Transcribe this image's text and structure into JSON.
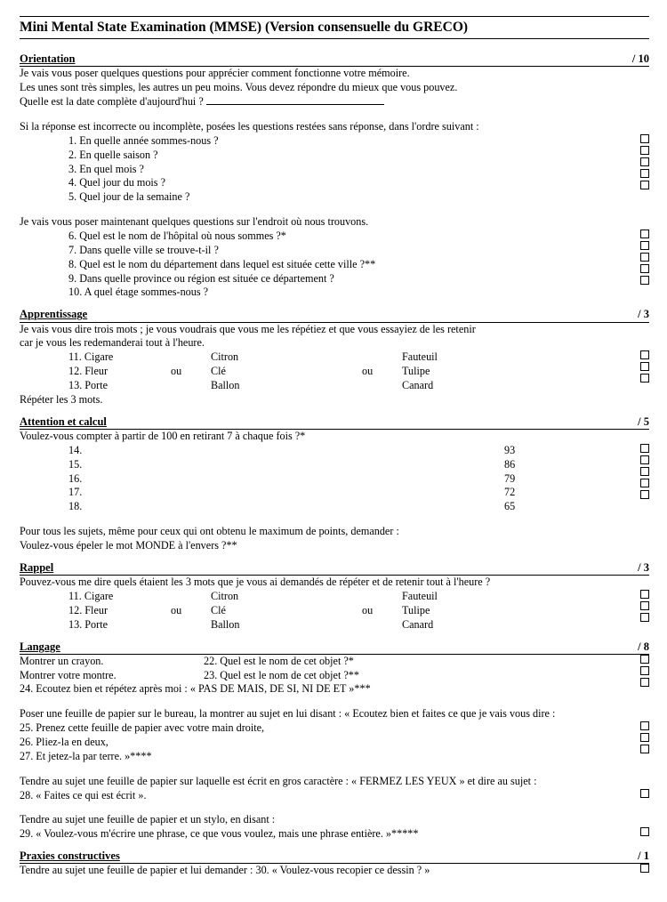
{
  "title": "Mini Mental State Examination (MMSE) (Version consensuelle du GRECO)",
  "scoreSlash": "/ ",
  "orientation": {
    "title": "Orientation",
    "max": "10",
    "intro1": "Je vais vous poser quelques questions pour apprécier comment fonctionne votre mémoire.",
    "intro2": "Les unes sont très simples, les autres un peu moins. Vous devez répondre du mieux que vous pouvez.",
    "dateQ": "Quelle est la date complète d'aujourd'hui ? ",
    "followup": "Si la réponse est incorrecte ou incomplète, posées les questions restées sans réponse, dans l'ordre suivant :",
    "q1": "1. En quelle année sommes-nous ?",
    "q2": "2. En quelle saison ?",
    "q3": "3. En quel mois ?",
    "q4": "4. Quel jour du mois ?",
    "q5": "5. Quel jour de la semaine ?",
    "place_intro": "Je vais vous poser maintenant quelques questions sur l'endroit où nous trouvons.",
    "q6": "6. Quel est le nom de l'hôpital où nous sommes ?*",
    "q7": "7. Dans quelle ville se trouve-t-il ?",
    "q8": "8. Quel est le nom du département dans lequel est située cette ville ?**",
    "q9": "9. Dans quelle province ou région est située ce département ?",
    "q10": "10. A quel étage sommes-nous ?"
  },
  "apprentissage": {
    "title": "Apprentissage",
    "max": "3",
    "intro1": "Je vais vous dire trois mots ; je vous voudrais que vous me les répétiez et que vous essayiez de les retenir",
    "intro2": "car je vous les redemanderai tout à l'heure.",
    "row1": {
      "n": "11. Cigare",
      "w2": "Citron",
      "w3": "Fauteuil"
    },
    "row2": {
      "n": "12. Fleur",
      "ou": "ou",
      "w2": "Clé",
      "w3": "Tulipe"
    },
    "row3": {
      "n": "13. Porte",
      "w2": "Ballon",
      "w3": "Canard"
    },
    "repeat": "Répéter les 3 mots."
  },
  "attention": {
    "title": "Attention et calcul",
    "max": "5",
    "intro": "Voulez-vous compter à partir de 100 en retirant 7 à chaque fois ?*",
    "r14": {
      "n": "14.",
      "v": "93"
    },
    "r15": {
      "n": "15.",
      "v": "86"
    },
    "r16": {
      "n": "16.",
      "v": "79"
    },
    "r17": {
      "n": "17.",
      "v": "72"
    },
    "r18": {
      "n": "18.",
      "v": "65"
    },
    "post1": "Pour tous les sujets, même pour ceux qui ont obtenu le maximum de points, demander :",
    "post2": "Voulez-vous épeler le mot MONDE à l'envers ?**"
  },
  "rappel": {
    "title": "Rappel",
    "max": "3",
    "intro": "Pouvez-vous me dire quels étaient les 3 mots que je vous ai demandés de répéter et de retenir tout à l'heure ?",
    "row1": {
      "n": "11. Cigare",
      "w2": "Citron",
      "w3": "Fauteuil"
    },
    "row2": {
      "n": "12. Fleur",
      "ou": "ou",
      "w2": "Clé",
      "w3": "Tulipe"
    },
    "row3": {
      "n": "13. Porte",
      "w2": "Ballon",
      "w3": "Canard"
    }
  },
  "langage": {
    "title": "Langage",
    "max": "8",
    "l1a": "Montrer un crayon.",
    "l1b": "22. Quel est le nom de cet objet ?*",
    "l2a": "Montrer votre montre.",
    "l2b": "23. Quel est le nom de cet objet ?**",
    "l3": "24. Ecoutez bien et répétez après moi : « PAS DE MAIS, DE SI, NI DE ET »***",
    "p1": "Poser une feuille de papier sur le bureau, la montrer au sujet en lui disant : « Ecoutez bien et faites ce que je vais vous dire :",
    "q25": "25. Prenez cette feuille de papier avec votre main droite,",
    "q26": "26. Pliez-la en deux,",
    "q27": "27. Et jetez-la par terre. »****",
    "p2": "Tendre au sujet une feuille de papier sur laquelle est écrit en gros caractère : « FERMEZ LES YEUX » et dire au sujet :",
    "q28": "28. « Faites ce qui est écrit ».",
    "p3": "Tendre au sujet une feuille de papier et un stylo, en disant :",
    "q29": "29. « Voulez-vous m'écrire une phrase, ce que vous voulez, mais une phrase entière. »*****"
  },
  "praxies": {
    "title": "Praxies constructives",
    "max": "1",
    "text": "Tendre au sujet une feuille de papier et lui demander : 30. « Voulez-vous recopier ce dessin ? »"
  }
}
